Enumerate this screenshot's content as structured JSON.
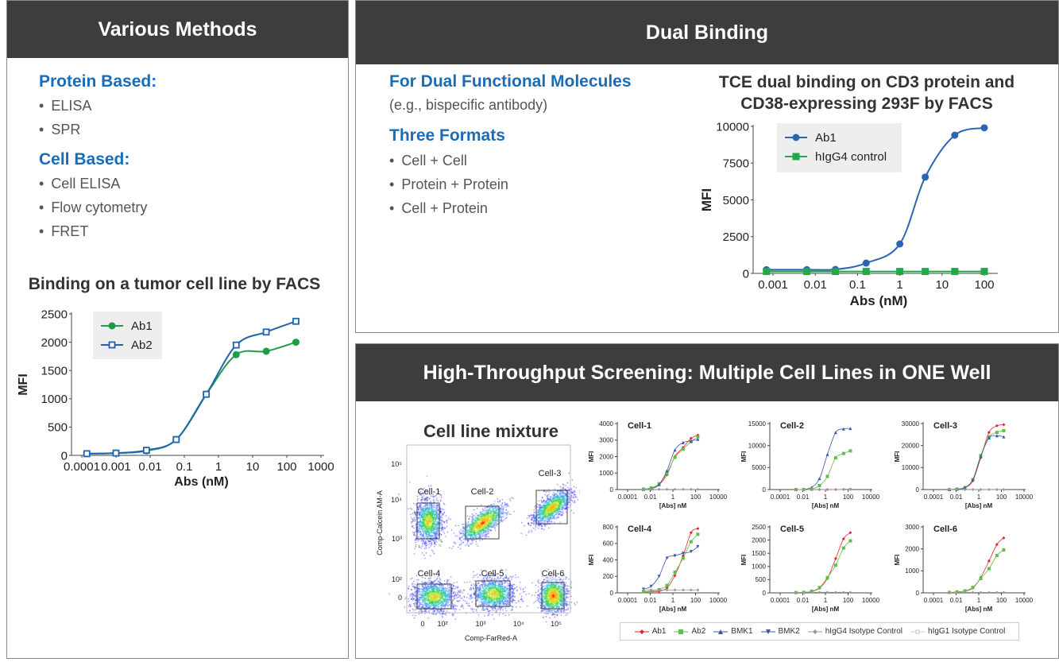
{
  "methods": {
    "title": "Various Methods",
    "protein_heading": "Protein Based:",
    "protein_items": [
      "ELISA",
      "SPR"
    ],
    "cell_heading": "Cell Based:",
    "cell_items": [
      "Cell ELISA",
      "Flow cytometry",
      "FRET"
    ],
    "chart_title": "Binding on a tumor cell line by FACS"
  },
  "dual": {
    "title": "Dual Binding",
    "heading1": "For Dual Functional Molecules",
    "sub1": "(e.g., bispecific antibody)",
    "heading2": "Three Formats",
    "formats": [
      "Cell + Cell",
      "Protein + Protein",
      "Cell + Protein"
    ],
    "chart_title_line1": "TCE dual binding on CD3 protein and",
    "chart_title_line2": "CD38-expressing 293F by FACS"
  },
  "hts": {
    "title": "High-Throughput Screening: Multiple Cell Lines in ONE Well",
    "mixture_title": "Cell line mixture",
    "flow": {
      "xlabel": "Comp-FarRed-A",
      "ylabel": "Comp-Calcein AM-A",
      "xticks": [
        "0",
        "10²",
        "10³",
        "10⁴",
        "10⁵"
      ],
      "yticks": [
        "10⁵",
        "10⁴",
        "10³",
        "10²",
        "0"
      ],
      "gates": [
        "Cell-1",
        "Cell-2",
        "Cell-3",
        "Cell-4",
        "Cell-5",
        "Cell-6"
      ]
    },
    "legend": [
      {
        "name": "Ab1",
        "color": "#e8262b",
        "marker": "diamond"
      },
      {
        "name": "Ab2",
        "color": "#5cbf48",
        "marker": "square"
      },
      {
        "name": "BMK1",
        "color": "#3a57a7",
        "marker": "triangle"
      },
      {
        "name": "BMK2",
        "color": "#3a57a7",
        "marker": "triangle-down"
      },
      {
        "name": "hIgG4 Isotype Control",
        "color": "#999999",
        "marker": "diamond"
      },
      {
        "name": "hIgG1 Isotype Control",
        "color": "#cccccc",
        "marker": "square-open"
      }
    ]
  },
  "chart_data": [
    {
      "id": "tumor",
      "type": "line",
      "title": "Binding on a tumor cell line by FACS",
      "xlabel": "Abs (nM)",
      "ylabel": "MFI",
      "xscale": "log",
      "xlim": [
        0.0001,
        1000
      ],
      "ylim": [
        0,
        2500
      ],
      "xticks": [
        "0.0001",
        "0.001",
        "0.01",
        "0.1",
        "1",
        "10",
        "100",
        "1000"
      ],
      "yticks": [
        "0",
        "500",
        "1000",
        "1500",
        "2000",
        "2500"
      ],
      "legend_position": "top-left",
      "x": [
        0.00014,
        0.001,
        0.0078,
        0.058,
        0.44,
        3.3,
        25,
        185
      ],
      "series": [
        {
          "name": "Ab1",
          "color": "#1c9e47",
          "marker": "circle",
          "values": [
            30,
            40,
            80,
            280,
            1080,
            1780,
            1840,
            2000
          ]
        },
        {
          "name": "Ab2",
          "color": "#1f63b0",
          "marker": "square-open",
          "values": [
            30,
            40,
            90,
            280,
            1080,
            1950,
            2180,
            2370
          ]
        }
      ]
    },
    {
      "id": "tce",
      "type": "line",
      "title": "TCE dual binding on CD3 protein and CD38-expressing 293F by FACS",
      "xlabel": "Abs (nM)",
      "ylabel": "MFI",
      "xscale": "log",
      "xlim": [
        0.001,
        100
      ],
      "ylim": [
        0,
        10000
      ],
      "xticks": [
        "0.001",
        "0.01",
        "0.1",
        "1",
        "10",
        "100"
      ],
      "yticks": [
        "0",
        "2500",
        "5000",
        "7500",
        "10000"
      ],
      "legend_position": "top-left",
      "x": [
        0.0007,
        0.0063,
        0.03,
        0.16,
        1,
        4,
        20,
        100
      ],
      "series": [
        {
          "name": "Ab1",
          "color": "#2a66b3",
          "marker": "circle",
          "values": [
            250,
            250,
            270,
            700,
            2000,
            6550,
            9400,
            9900
          ]
        },
        {
          "name": "hIgG4 control",
          "color": "#22a84a",
          "marker": "square",
          "values": [
            130,
            130,
            130,
            130,
            130,
            130,
            130,
            130
          ]
        }
      ]
    },
    {
      "id": "cell1",
      "type": "line",
      "title": "Cell-1",
      "xlabel": "[Abs] nM",
      "ylabel": "MFI",
      "xscale": "log",
      "xlim": [
        0.0001,
        10000
      ],
      "ylim": [
        0,
        4000
      ],
      "xticks": [
        "0.0001",
        "0.01",
        "1",
        "100",
        "10000"
      ],
      "yticks": [
        "0",
        "1000",
        "2000",
        "3000",
        "4000"
      ],
      "x": [
        0.0025,
        0.012,
        0.06,
        0.3,
        1.5,
        8,
        40,
        160
      ],
      "series": [
        {
          "name": "Ab1",
          "values": [
            20,
            60,
            300,
            900,
            2000,
            2550,
            3100,
            3300
          ]
        },
        {
          "name": "Ab2",
          "values": [
            30,
            100,
            350,
            1000,
            1950,
            2450,
            2900,
            3200
          ]
        },
        {
          "name": "BMK1",
          "values": [
            10,
            50,
            300,
            1150,
            2400,
            2850,
            2950,
            3050
          ]
        },
        {
          "name": "hIgG4 Isotype Control",
          "values": [
            10,
            10,
            10,
            10,
            10,
            10,
            10,
            10
          ]
        }
      ]
    },
    {
      "id": "cell2",
      "type": "line",
      "title": "Cell-2",
      "xlabel": "[Abs] nM",
      "ylabel": "MFI",
      "xscale": "log",
      "xlim": [
        0.0001,
        10000
      ],
      "ylim": [
        0,
        15000
      ],
      "xticks": [
        "0.0001",
        "0.01",
        "1",
        "100",
        "10000"
      ],
      "yticks": [
        "0",
        "5000",
        "10000",
        "15000"
      ],
      "x": [
        0.0025,
        0.012,
        0.06,
        0.3,
        1.5,
        8,
        40,
        160
      ],
      "series": [
        {
          "name": "BMK1",
          "values": [
            0,
            50,
            500,
            2500,
            8000,
            13000,
            13800,
            13900
          ]
        },
        {
          "name": "Ab2",
          "values": [
            0,
            20,
            100,
            900,
            3000,
            7200,
            8200,
            8800
          ]
        },
        {
          "name": "Ab1",
          "values": [
            0,
            0,
            0,
            0,
            0,
            0,
            50,
            80
          ]
        },
        {
          "name": "hIgG4 Isotype Control",
          "values": [
            0,
            0,
            0,
            0,
            0,
            0,
            0,
            0
          ]
        }
      ]
    },
    {
      "id": "cell3",
      "type": "line",
      "title": "Cell-3",
      "xlabel": "[Abs] nM",
      "ylabel": "MFI",
      "xscale": "log",
      "xlim": [
        0.0001,
        10000
      ],
      "ylim": [
        0,
        30000
      ],
      "xticks": [
        "0.0001",
        "0.01",
        "1",
        "100",
        "10000"
      ],
      "yticks": [
        "0",
        "10000",
        "20000",
        "30000"
      ],
      "x": [
        0.0025,
        0.012,
        0.06,
        0.3,
        1.5,
        8,
        40,
        160
      ],
      "series": [
        {
          "name": "Ab1",
          "values": [
            0,
            200,
            800,
            4000,
            14500,
            26000,
            29000,
            29500
          ]
        },
        {
          "name": "Ab2",
          "values": [
            0,
            200,
            900,
            4500,
            15500,
            24000,
            26000,
            26800
          ]
        },
        {
          "name": "BMK1",
          "values": [
            0,
            200,
            900,
            4500,
            15000,
            23500,
            24500,
            24000
          ]
        },
        {
          "name": "hIgG4 Isotype Control",
          "values": [
            0,
            0,
            0,
            0,
            0,
            0,
            0,
            0
          ]
        }
      ]
    },
    {
      "id": "cell4",
      "type": "line",
      "title": "Cell-4",
      "xlabel": "[Abs] nM",
      "ylabel": "MFI",
      "xscale": "log",
      "xlim": [
        0.0001,
        10000
      ],
      "ylim": [
        0,
        800
      ],
      "xticks": [
        "0.0001",
        "0.01",
        "1",
        "100",
        "10000"
      ],
      "yticks": [
        "0",
        "200",
        "400",
        "600",
        "800"
      ],
      "x": [
        0.0025,
        0.012,
        0.06,
        0.3,
        1.5,
        8,
        40,
        160
      ],
      "series": [
        {
          "name": "Ab1",
          "values": [
            10,
            15,
            20,
            60,
            210,
            450,
            730,
            780
          ]
        },
        {
          "name": "Ab2",
          "values": [
            15,
            20,
            40,
            90,
            250,
            420,
            620,
            710
          ]
        },
        {
          "name": "BMK2",
          "values": [
            45,
            80,
            200,
            420,
            450,
            480,
            500,
            560
          ]
        },
        {
          "name": "hIgG4 Isotype Control",
          "values": [
            35,
            35,
            35,
            35,
            35,
            35,
            35,
            35
          ]
        }
      ]
    },
    {
      "id": "cell5",
      "type": "line",
      "title": "Cell-5",
      "xlabel": "[Abs] nM",
      "ylabel": "MFI",
      "xscale": "log",
      "xlim": [
        0.0001,
        10000
      ],
      "ylim": [
        0,
        2500
      ],
      "xticks": [
        "0.0001",
        "0.01",
        "1",
        "100",
        "10000"
      ],
      "yticks": [
        "0",
        "500",
        "1000",
        "1500",
        "2000",
        "2500"
      ],
      "x": [
        0.0025,
        0.012,
        0.06,
        0.3,
        1.5,
        8,
        40,
        160
      ],
      "series": [
        {
          "name": "Ab1",
          "values": [
            10,
            20,
            50,
            180,
            550,
            1300,
            2050,
            2280
          ]
        },
        {
          "name": "Ab2",
          "values": [
            10,
            20,
            60,
            200,
            580,
            1050,
            1700,
            1970
          ]
        },
        {
          "name": "hIgG4 Isotype Control",
          "values": [
            20,
            20,
            20,
            20,
            20,
            20,
            20,
            20
          ]
        }
      ]
    },
    {
      "id": "cell6",
      "type": "line",
      "title": "Cell-6",
      "xlabel": "[Abs] nM",
      "ylabel": "MFI",
      "xscale": "log",
      "xlim": [
        0.0001,
        10000
      ],
      "ylim": [
        0,
        3000
      ],
      "xticks": [
        "0.0001",
        "0.01",
        "1",
        "100",
        "10000"
      ],
      "yticks": [
        "0",
        "1000",
        "2000",
        "3000"
      ],
      "x": [
        0.0025,
        0.012,
        0.06,
        0.3,
        1.5,
        8,
        40,
        160
      ],
      "series": [
        {
          "name": "Ab1",
          "values": [
            20,
            40,
            80,
            220,
            700,
            1450,
            2200,
            2500
          ]
        },
        {
          "name": "Ab2",
          "values": [
            20,
            40,
            90,
            250,
            650,
            1100,
            1700,
            1950
          ]
        },
        {
          "name": "hIgG4 Isotype Control",
          "values": [
            20,
            20,
            20,
            20,
            20,
            20,
            20,
            20
          ]
        }
      ]
    }
  ]
}
